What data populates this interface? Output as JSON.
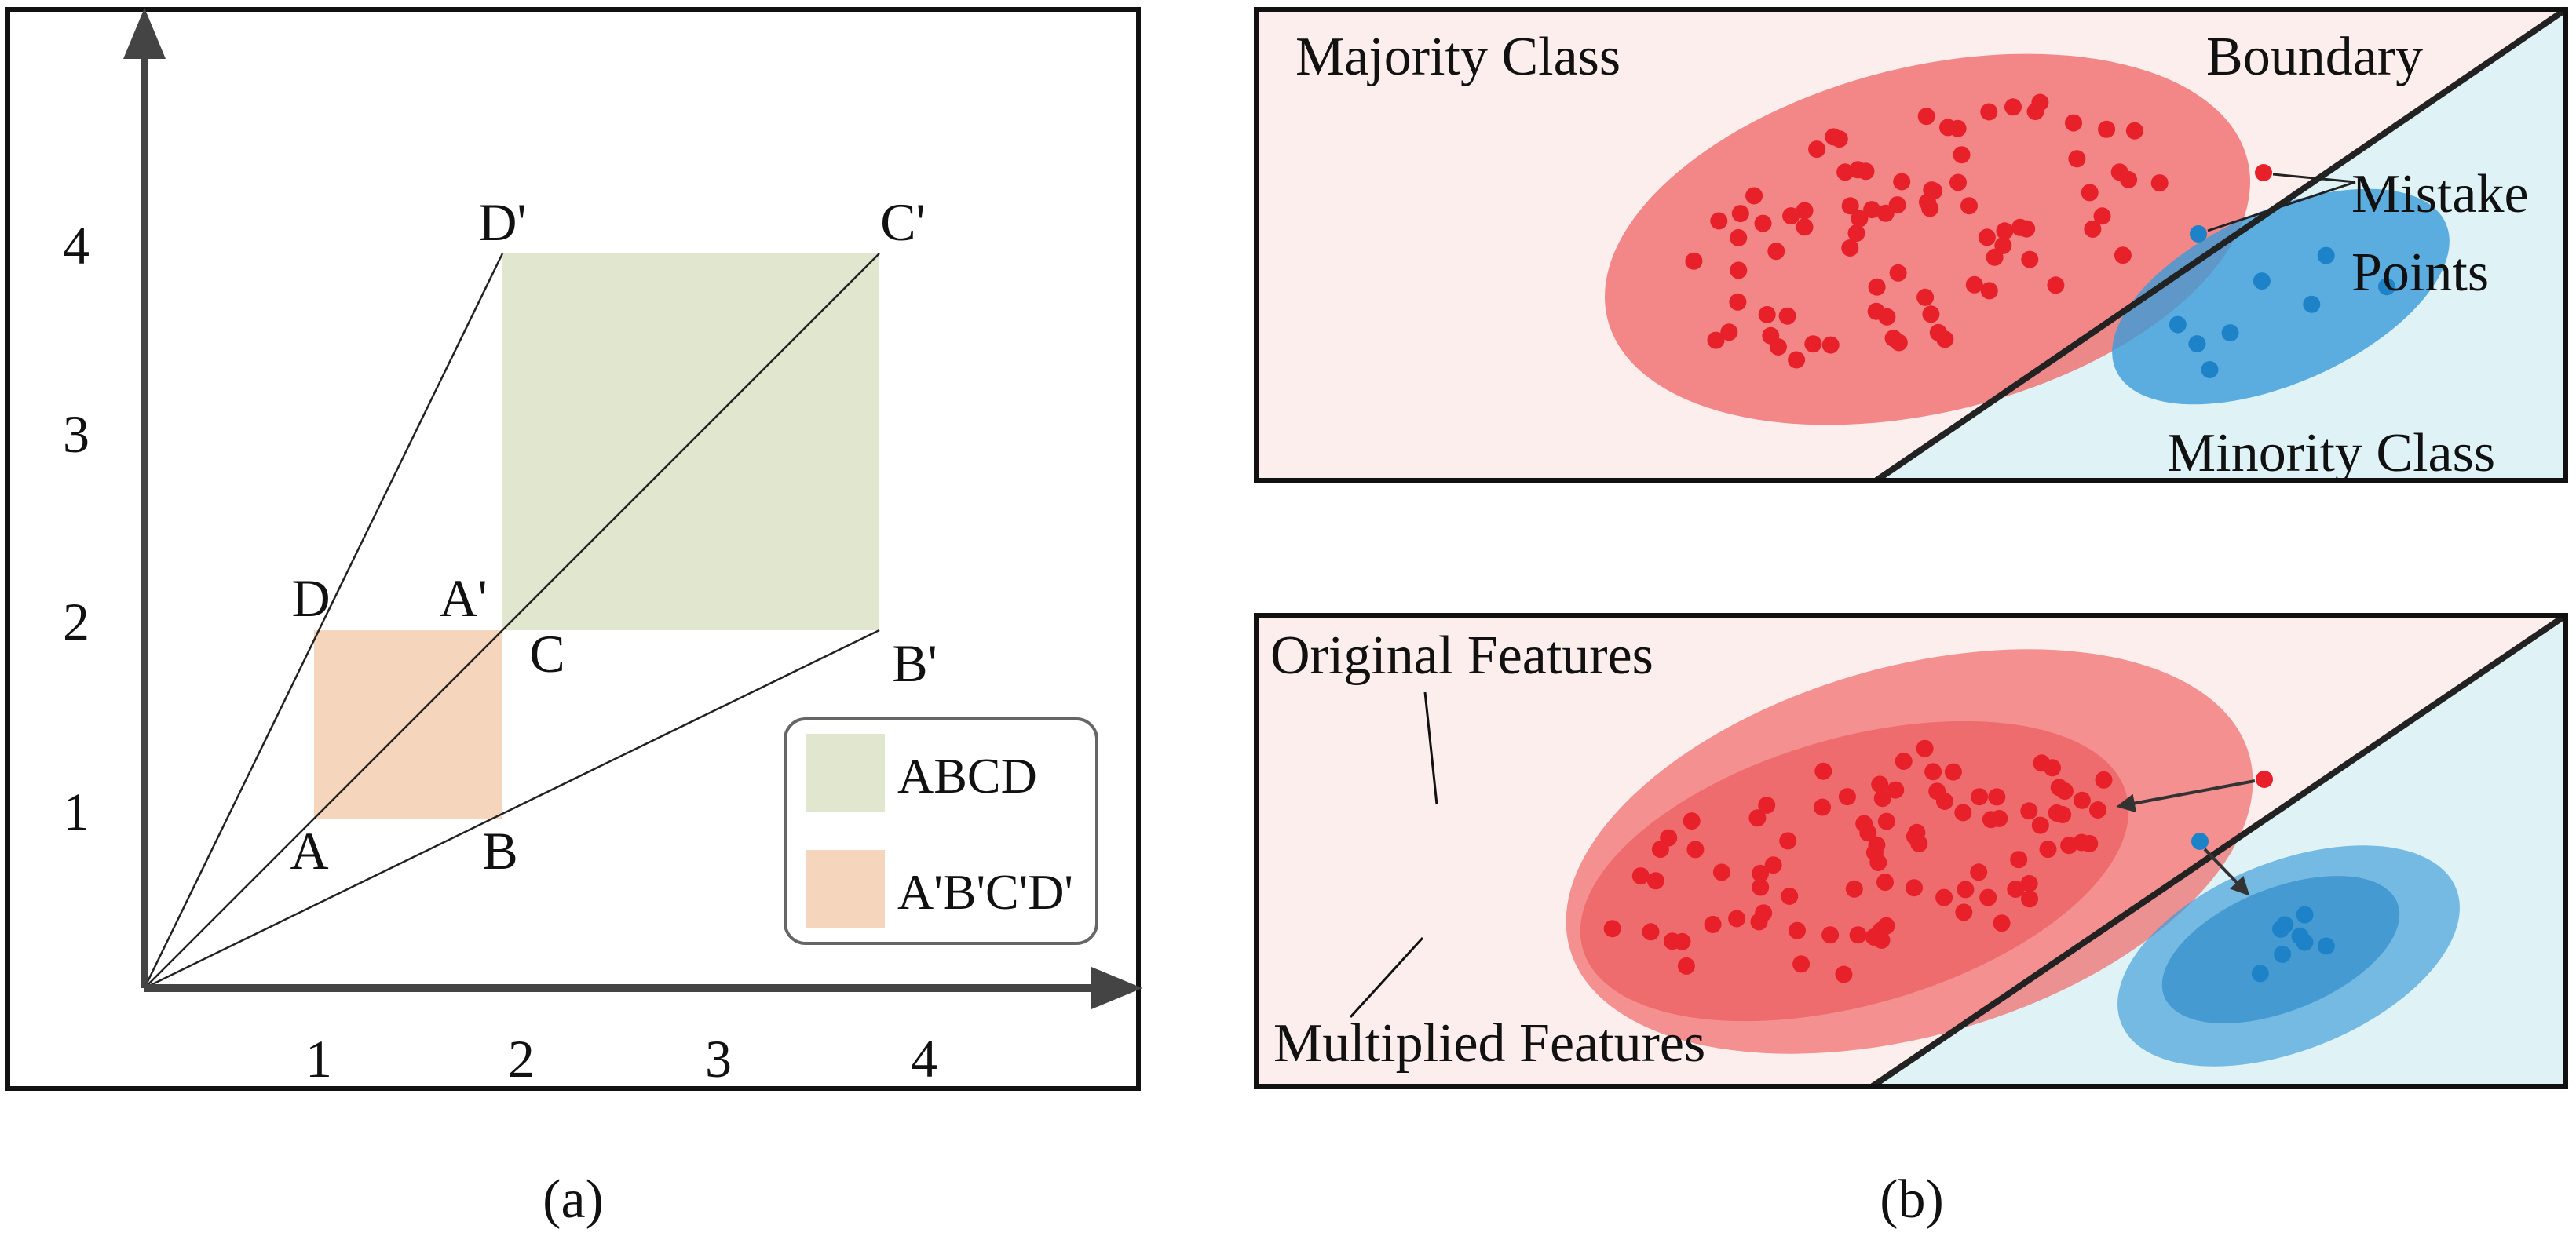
{
  "panel_a": {
    "caption": "(a)",
    "x_ticks": [
      "1",
      "2",
      "3",
      "4"
    ],
    "y_ticks": [
      "1",
      "2",
      "3",
      "4"
    ],
    "points": {
      "A": {
        "label": "A",
        "x": 1,
        "y": 1
      },
      "B": {
        "label": "B",
        "x": 2,
        "y": 1
      },
      "C": {
        "label": "C",
        "x": 2,
        "y": 2
      },
      "D": {
        "label": "D",
        "x": 1,
        "y": 2
      },
      "Ap": {
        "label": "A'",
        "x": 2,
        "y": 2
      },
      "Bp": {
        "label": "B'",
        "x": 4,
        "y": 2
      },
      "Cp": {
        "label": "C'",
        "x": 4,
        "y": 4
      },
      "Dp": {
        "label": "D'",
        "x": 2,
        "y": 4
      }
    },
    "legend": {
      "abcd": "ABCD",
      "abcd_prime": "A'B'C'D'"
    },
    "colors": {
      "abcd": "#f5d6bc",
      "abcd_prime": "#e1e6cf",
      "axis": "#444444"
    }
  },
  "panel_b": {
    "caption": "(b)",
    "top": {
      "majority_label": "Majority Class",
      "boundary_label": "Boundary",
      "mistake_label_line1": "Mistake",
      "mistake_label_line2": "Points",
      "minority_label": "Minority Class"
    },
    "bottom": {
      "original_label": "Original Features",
      "multiplied_label": "Multiplied Features"
    },
    "colors": {
      "majority_bg": "#fdeeee",
      "minority_bg": "#dff3f7",
      "majority_ellipse": "#f07070",
      "minority_ellipse": "#3a9bd8",
      "red_point": "#e8202a",
      "blue_point": "#1e82c8"
    }
  }
}
